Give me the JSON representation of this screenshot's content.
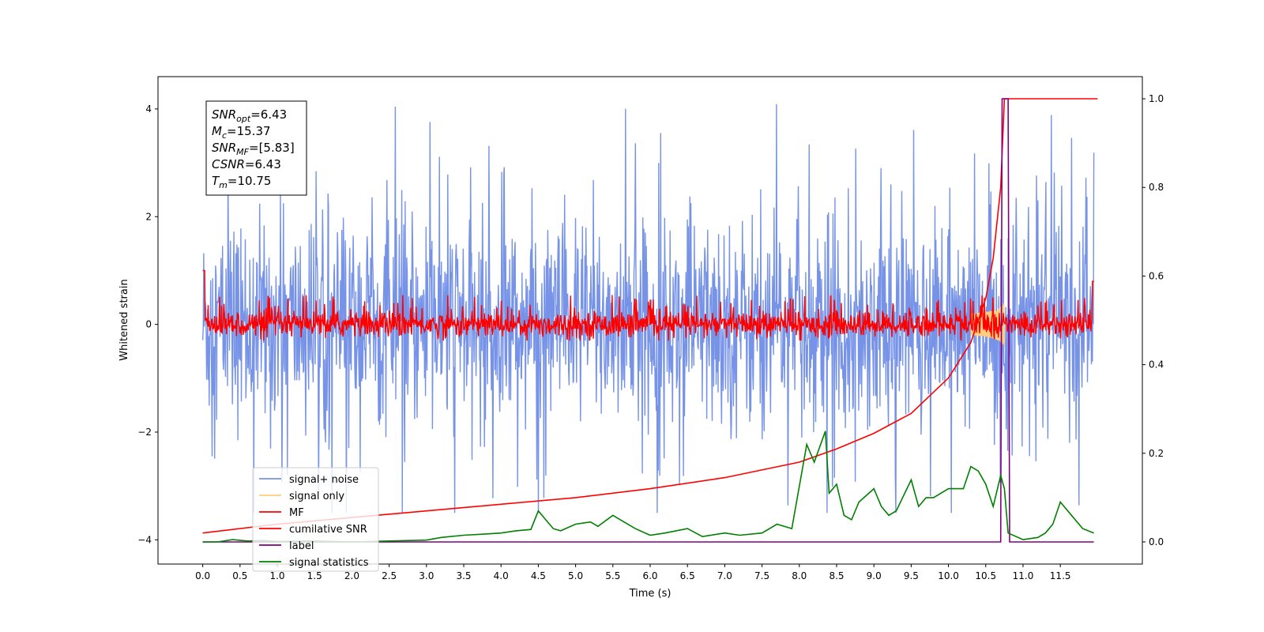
{
  "chart_data": {
    "type": "line",
    "title": "",
    "xlabel": "Time (s)",
    "ylabel": "Whitened strain",
    "y2label": "",
    "xlim": [
      -0.6,
      12.6
    ],
    "ylim": [
      -4.45,
      4.6
    ],
    "y2lim": [
      -0.05,
      1.05
    ],
    "x_ticks": [
      "0.0",
      "0.5",
      "1.0",
      "1.5",
      "2.0",
      "2.5",
      "3.0",
      "3.5",
      "4.0",
      "4.5",
      "5.0",
      "5.5",
      "6.0",
      "6.5",
      "7.0",
      "7.5",
      "8.0",
      "8.5",
      "9.0",
      "9.5",
      "10.0",
      "10.5",
      "11.0",
      "11.5"
    ],
    "y_ticks": [
      "−4",
      "−2",
      "0",
      "2",
      "4"
    ],
    "y2_ticks": [
      "0.0",
      "0.2",
      "0.4",
      "0.6",
      "0.8",
      "1.0"
    ],
    "grid": false,
    "legend_position": "lower-left",
    "annotation": {
      "lines": [
        {
          "sym": "SNR",
          "sub": "opt",
          "value": "=6.43"
        },
        {
          "sym": "M",
          "sub": "c",
          "value": "=15.37"
        },
        {
          "sym": "SNR",
          "sub": "MF",
          "value": "=[5.83]"
        },
        {
          "sym": "CSNR",
          "sub": "",
          "value": "=6.43"
        },
        {
          "sym": "T",
          "sub": "m",
          "value": "=10.75"
        }
      ]
    },
    "series": [
      {
        "name": "signal+ noise",
        "color": "#7693e8",
        "axis": "left",
        "kind": "noise",
        "amplitude_range": [
          -3.5,
          4.15
        ]
      },
      {
        "name": "signal only",
        "color": "#ffcc80",
        "axis": "left",
        "kind": "chirp",
        "merger_time": 10.75
      },
      {
        "name": "MF",
        "color": "#ff0000",
        "axis": "left",
        "kind": "noise",
        "amplitude_range": [
          -0.3,
          0.6
        ]
      },
      {
        "name": "cumilative SNR",
        "color": "#ff0000",
        "axis": "right",
        "x": [
          0.0,
          1.0,
          2.0,
          3.0,
          4.0,
          5.0,
          6.0,
          7.0,
          8.0,
          8.5,
          9.0,
          9.5,
          10.0,
          10.3,
          10.5,
          10.6,
          10.7,
          10.75,
          12.0
        ],
        "values": [
          0.02,
          0.04,
          0.055,
          0.07,
          0.085,
          0.1,
          0.12,
          0.145,
          0.18,
          0.21,
          0.245,
          0.29,
          0.37,
          0.45,
          0.55,
          0.64,
          0.8,
          1.0,
          1.0
        ]
      },
      {
        "name": "label",
        "color": "#800080",
        "axis": "right",
        "x": [
          0.0,
          10.7,
          10.72,
          10.8,
          10.82,
          11.95
        ],
        "values": [
          0.0,
          0.0,
          1.0,
          1.0,
          0.0,
          0.0
        ]
      },
      {
        "name": "signal statistics",
        "color": "#008000",
        "axis": "right",
        "x": [
          0.0,
          0.2,
          0.4,
          0.6,
          0.8,
          1.0,
          1.5,
          2.0,
          2.5,
          3.0,
          3.2,
          3.5,
          3.8,
          4.0,
          4.2,
          4.4,
          4.5,
          4.6,
          4.7,
          4.8,
          5.0,
          5.2,
          5.3,
          5.5,
          5.6,
          5.8,
          6.0,
          6.2,
          6.5,
          6.7,
          7.0,
          7.2,
          7.5,
          7.7,
          7.9,
          8.1,
          8.2,
          8.35,
          8.4,
          8.5,
          8.6,
          8.7,
          8.8,
          9.0,
          9.1,
          9.2,
          9.3,
          9.5,
          9.6,
          9.7,
          9.8,
          10.0,
          10.2,
          10.3,
          10.4,
          10.5,
          10.6,
          10.7,
          10.75,
          10.8,
          11.0,
          11.2,
          11.3,
          11.4,
          11.5,
          11.6,
          11.8,
          11.95
        ],
        "values": [
          0.0,
          0.0,
          0.005,
          0.002,
          0.003,
          0.001,
          0.002,
          0.0,
          0.002,
          0.004,
          0.01,
          0.015,
          0.018,
          0.02,
          0.025,
          0.028,
          0.07,
          0.05,
          0.03,
          0.025,
          0.04,
          0.045,
          0.035,
          0.06,
          0.05,
          0.03,
          0.015,
          0.02,
          0.03,
          0.012,
          0.02,
          0.015,
          0.02,
          0.04,
          0.03,
          0.22,
          0.18,
          0.25,
          0.11,
          0.13,
          0.06,
          0.05,
          0.09,
          0.12,
          0.08,
          0.06,
          0.07,
          0.14,
          0.08,
          0.1,
          0.1,
          0.12,
          0.12,
          0.17,
          0.16,
          0.13,
          0.08,
          0.15,
          0.12,
          0.02,
          0.005,
          0.01,
          0.02,
          0.04,
          0.09,
          0.07,
          0.03,
          0.02
        ]
      }
    ]
  }
}
